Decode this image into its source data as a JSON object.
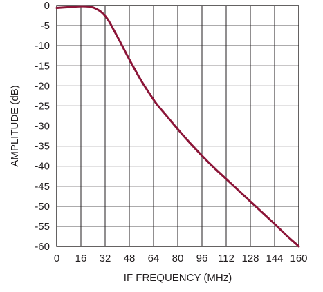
{
  "chart_data": {
    "type": "line",
    "xlabel": "IF FREQUENCY (MHz)",
    "ylabel": "AMPLITUDE (dB)",
    "xlim": [
      0,
      160
    ],
    "ylim": [
      -60,
      0
    ],
    "x_ticks": [
      0,
      16,
      32,
      48,
      64,
      80,
      96,
      112,
      128,
      144,
      160
    ],
    "y_ticks": [
      0,
      -5,
      -10,
      -15,
      -20,
      -25,
      -30,
      -35,
      -40,
      -45,
      -50,
      -55,
      -60
    ],
    "grid": true,
    "series": [
      {
        "color": "#8c1538",
        "x": [
          0,
          8,
          16,
          22,
          26,
          30,
          34,
          38,
          42,
          46,
          50,
          56,
          62,
          66,
          72,
          80,
          88,
          96,
          104,
          112,
          120,
          128,
          136,
          144,
          152,
          158,
          160
        ],
        "y": [
          -0.6,
          -0.4,
          -0.2,
          -0.3,
          -0.8,
          -1.8,
          -3.6,
          -6.3,
          -9.1,
          -12.0,
          -14.8,
          -18.8,
          -22.3,
          -24.5,
          -27.2,
          -30.8,
          -34.2,
          -37.4,
          -40.4,
          -43.2,
          -46.0,
          -48.8,
          -51.6,
          -54.4,
          -57.3,
          -59.3,
          -60.0
        ]
      }
    ]
  }
}
